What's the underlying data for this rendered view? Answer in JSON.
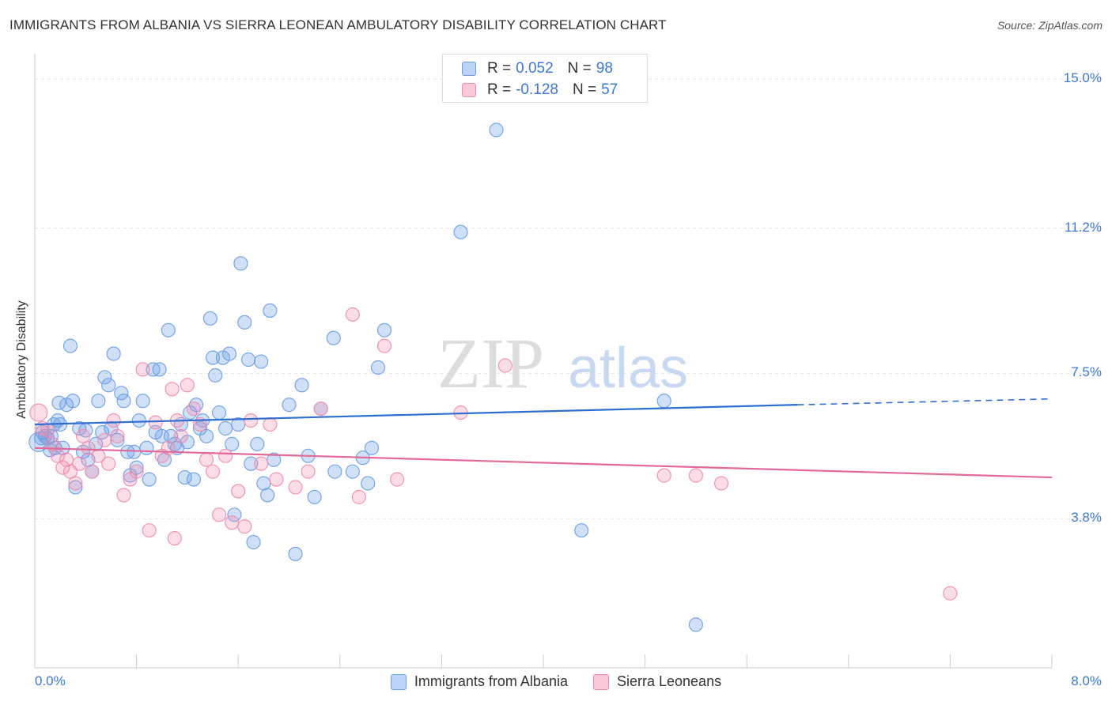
{
  "title": "IMMIGRANTS FROM ALBANIA VS SIERRA LEONEAN AMBULATORY DISABILITY CORRELATION CHART",
  "source": "Source: ZipAtlas.com",
  "watermark": {
    "zip": "ZIP",
    "atlas": "atlas"
  },
  "legend_top": [
    {
      "r_label": "R =",
      "r_value": "0.052",
      "n_label": "N =",
      "n_value": "98"
    },
    {
      "r_label": "R =",
      "r_value": "-0.128",
      "n_label": "N =",
      "n_value": "57"
    }
  ],
  "chart_data": {
    "type": "scatter",
    "title": "IMMIGRANTS FROM ALBANIA VS SIERRA LEONEAN AMBULATORY DISABILITY CORRELATION CHART",
    "xlabel": "",
    "ylabel": "Ambulatory Disability",
    "xlim": [
      0,
      8
    ],
    "ylim": [
      0,
      15.5
    ],
    "x_tick_labels": [
      "0.0%",
      "8.0%"
    ],
    "y_ticks": [
      3.8,
      7.5,
      11.2,
      15.0
    ],
    "y_tick_labels": [
      "3.8%",
      "7.5%",
      "11.2%",
      "15.0%"
    ],
    "grid": true,
    "legend_position": "bottom",
    "colors": {
      "blue": "#6e9fe6",
      "pink": "#f08db0",
      "blue_line": "#2f6fd1",
      "pink_line": "#e2699a"
    },
    "series": [
      {
        "name": "Immigrants from Albania",
        "color": "#6e9fe6",
        "trend": {
          "x": [
            0,
            6.0
          ],
          "y": [
            6.2,
            6.7
          ],
          "dashed_to": [
            8.0,
            6.85
          ]
        },
        "points": [
          [
            0.03,
            5.75
          ],
          [
            0.06,
            6.0
          ],
          [
            0.08,
            5.9
          ],
          [
            0.1,
            5.85
          ],
          [
            0.12,
            5.55
          ],
          [
            0.15,
            6.2
          ],
          [
            0.18,
            6.3
          ],
          [
            0.2,
            6.2
          ],
          [
            0.22,
            5.6
          ],
          [
            0.25,
            6.7
          ],
          [
            0.28,
            8.2
          ],
          [
            0.3,
            6.8
          ],
          [
            0.32,
            4.6
          ],
          [
            0.35,
            6.1
          ],
          [
            0.38,
            5.5
          ],
          [
            0.4,
            6.05
          ],
          [
            0.42,
            5.3
          ],
          [
            0.45,
            5.0
          ],
          [
            0.48,
            5.7
          ],
          [
            0.5,
            6.8
          ],
          [
            0.53,
            6.0
          ],
          [
            0.55,
            7.4
          ],
          [
            0.58,
            7.2
          ],
          [
            0.6,
            6.1
          ],
          [
            0.62,
            8.0
          ],
          [
            0.65,
            5.8
          ],
          [
            0.68,
            7.0
          ],
          [
            0.7,
            6.8
          ],
          [
            0.73,
            5.5
          ],
          [
            0.75,
            4.9
          ],
          [
            0.78,
            5.5
          ],
          [
            0.8,
            5.1
          ],
          [
            0.82,
            6.3
          ],
          [
            0.85,
            6.8
          ],
          [
            0.88,
            5.6
          ],
          [
            0.9,
            4.8
          ],
          [
            0.93,
            7.6
          ],
          [
            0.95,
            6.0
          ],
          [
            0.98,
            7.6
          ],
          [
            1.0,
            5.9
          ],
          [
            1.02,
            5.3
          ],
          [
            1.05,
            8.6
          ],
          [
            1.07,
            5.9
          ],
          [
            1.1,
            5.7
          ],
          [
            1.12,
            5.6
          ],
          [
            1.15,
            6.2
          ],
          [
            1.18,
            4.85
          ],
          [
            1.2,
            5.75
          ],
          [
            1.22,
            6.5
          ],
          [
            1.25,
            4.8
          ],
          [
            1.27,
            6.7
          ],
          [
            1.3,
            6.1
          ],
          [
            1.32,
            6.3
          ],
          [
            1.35,
            5.9
          ],
          [
            1.38,
            8.9
          ],
          [
            1.4,
            7.9
          ],
          [
            1.42,
            7.45
          ],
          [
            1.45,
            6.5
          ],
          [
            1.48,
            7.9
          ],
          [
            1.5,
            6.1
          ],
          [
            1.53,
            8.0
          ],
          [
            1.55,
            5.7
          ],
          [
            1.57,
            3.9
          ],
          [
            1.6,
            6.2
          ],
          [
            1.62,
            10.3
          ],
          [
            1.65,
            8.8
          ],
          [
            1.68,
            7.85
          ],
          [
            1.7,
            5.2
          ],
          [
            1.72,
            3.2
          ],
          [
            1.75,
            5.7
          ],
          [
            1.78,
            7.8
          ],
          [
            1.8,
            4.7
          ],
          [
            1.83,
            4.4
          ],
          [
            1.85,
            9.1
          ],
          [
            1.88,
            5.3
          ],
          [
            2.0,
            6.7
          ],
          [
            2.05,
            2.9
          ],
          [
            2.1,
            7.2
          ],
          [
            2.15,
            5.4
          ],
          [
            2.2,
            4.35
          ],
          [
            2.25,
            6.6
          ],
          [
            2.35,
            8.4
          ],
          [
            2.5,
            5.0
          ],
          [
            2.58,
            5.35
          ],
          [
            2.62,
            4.7
          ],
          [
            2.65,
            5.6
          ],
          [
            2.7,
            7.65
          ],
          [
            2.75,
            8.6
          ],
          [
            3.35,
            11.1
          ],
          [
            3.63,
            13.7
          ],
          [
            4.3,
            3.5
          ],
          [
            4.95,
            6.8
          ],
          [
            5.2,
            1.1
          ],
          [
            2.36,
            5.0
          ],
          [
            0.05,
            5.85
          ],
          [
            0.13,
            5.9
          ],
          [
            0.16,
            5.6
          ],
          [
            0.19,
            6.75
          ]
        ]
      },
      {
        "name": "Sierra Leoneans",
        "color": "#f08db0",
        "trend": {
          "x": [
            0,
            8.0
          ],
          "y": [
            5.6,
            4.85
          ]
        },
        "points": [
          [
            0.03,
            6.5
          ],
          [
            0.06,
            6.1
          ],
          [
            0.1,
            6.05
          ],
          [
            0.14,
            5.7
          ],
          [
            0.18,
            5.4
          ],
          [
            0.22,
            5.1
          ],
          [
            0.25,
            5.3
          ],
          [
            0.28,
            5.0
          ],
          [
            0.32,
            4.7
          ],
          [
            0.35,
            5.2
          ],
          [
            0.38,
            5.9
          ],
          [
            0.42,
            5.6
          ],
          [
            0.45,
            5.0
          ],
          [
            0.5,
            5.4
          ],
          [
            0.55,
            5.8
          ],
          [
            0.58,
            5.2
          ],
          [
            0.62,
            6.3
          ],
          [
            0.65,
            5.9
          ],
          [
            0.7,
            4.4
          ],
          [
            0.75,
            4.8
          ],
          [
            0.8,
            5.0
          ],
          [
            0.85,
            7.6
          ],
          [
            0.9,
            3.5
          ],
          [
            0.95,
            6.25
          ],
          [
            1.0,
            5.4
          ],
          [
            1.05,
            5.6
          ],
          [
            1.08,
            7.1
          ],
          [
            1.1,
            3.3
          ],
          [
            1.12,
            6.3
          ],
          [
            1.15,
            5.9
          ],
          [
            1.2,
            7.2
          ],
          [
            1.25,
            6.6
          ],
          [
            1.3,
            6.2
          ],
          [
            1.35,
            5.3
          ],
          [
            1.4,
            5.0
          ],
          [
            1.45,
            3.9
          ],
          [
            1.5,
            5.4
          ],
          [
            1.55,
            3.7
          ],
          [
            1.6,
            4.5
          ],
          [
            1.65,
            3.6
          ],
          [
            1.7,
            6.3
          ],
          [
            1.78,
            5.2
          ],
          [
            1.85,
            6.2
          ],
          [
            1.9,
            4.8
          ],
          [
            2.05,
            4.6
          ],
          [
            2.15,
            5.0
          ],
          [
            2.25,
            6.6
          ],
          [
            2.5,
            9.0
          ],
          [
            2.55,
            4.35
          ],
          [
            2.75,
            8.2
          ],
          [
            2.85,
            4.8
          ],
          [
            3.35,
            6.5
          ],
          [
            3.7,
            7.7
          ],
          [
            4.95,
            4.9
          ],
          [
            5.2,
            4.9
          ],
          [
            5.4,
            4.7
          ],
          [
            7.2,
            1.9
          ]
        ]
      }
    ]
  },
  "legend_bottom": [
    {
      "label": "Immigrants from Albania"
    },
    {
      "label": "Sierra Leoneans"
    }
  ]
}
